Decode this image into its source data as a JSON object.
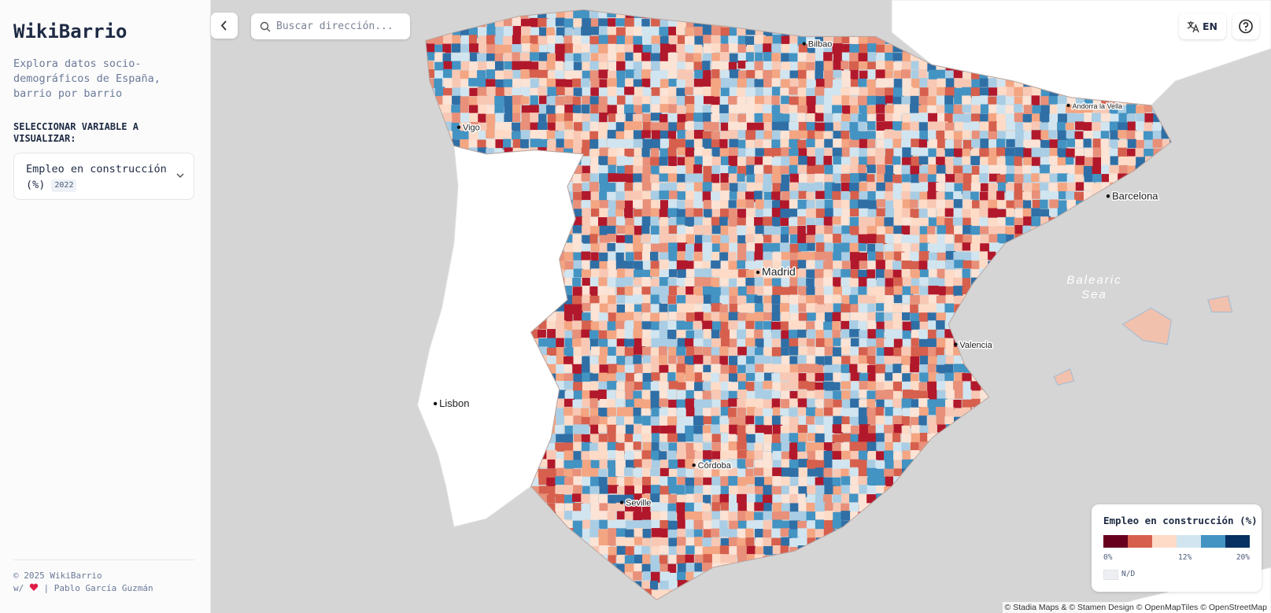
{
  "sidebar": {
    "title": "WikiBarrio",
    "description": "Explora datos socio-demográficos de España, barrio por barrio",
    "variable_label": "SELECCIONAR VARIABLE A VISUALIZAR:",
    "selected_variable": "Empleo en construcción (%)",
    "selected_year": "2022",
    "footer_copyright": "© 2025 WikiBarrio",
    "footer_credit_prefix": "w/",
    "footer_credit_author": "| Pablo García Guzmán"
  },
  "toolbar": {
    "search_placeholder": "Buscar dirección...",
    "language": "EN"
  },
  "map": {
    "places": [
      "Bilbao",
      "Vigo",
      "Andorra la Vella",
      "Barcelona",
      "Madrid",
      "Valencia",
      "Lisbon",
      "Córdoba",
      "Seville"
    ],
    "sea_label": [
      "Balearic",
      "Sea"
    ],
    "attribution": "© Stadia Maps & © Stamen Design © OpenMapTiles © OpenStreetMap"
  },
  "legend": {
    "title": "Empleo en construcción (%)",
    "ticks": [
      "0%",
      "12%",
      "20%"
    ],
    "missing": "N/D"
  }
}
